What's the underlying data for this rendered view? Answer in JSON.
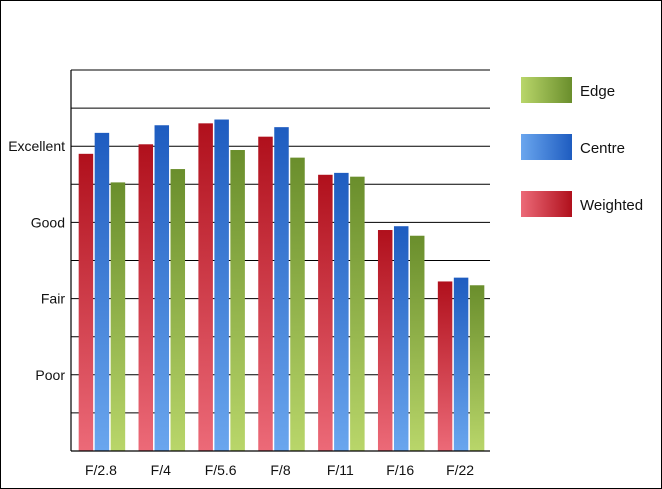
{
  "chart_data": {
    "type": "bar",
    "categories": [
      "F/2.8",
      "F/4",
      "F/5.6",
      "F/8",
      "F/11",
      "F/16",
      "F/22"
    ],
    "y_tick_labels": [
      {
        "label": "Poor",
        "value": 2
      },
      {
        "label": "Fair",
        "value": 4
      },
      {
        "label": "Good",
        "value": 6
      },
      {
        "label": "Excellent",
        "value": 8
      }
    ],
    "ylim": [
      0,
      10
    ],
    "grid": true,
    "legend_position": "right",
    "series": [
      {
        "name": "Weighted",
        "color": "#d4202c",
        "values": [
          7.8,
          8.05,
          8.6,
          8.25,
          7.25,
          5.8,
          4.45
        ]
      },
      {
        "name": "Centre",
        "color": "#2f6fd0",
        "values": [
          8.35,
          8.55,
          8.7,
          8.5,
          7.3,
          5.9,
          4.55
        ]
      },
      {
        "name": "Edge",
        "color": "#7fa83a",
        "values": [
          7.05,
          7.4,
          7.9,
          7.7,
          7.2,
          5.65,
          4.35
        ]
      }
    ],
    "legend_order": [
      "Edge",
      "Centre",
      "Weighted"
    ]
  }
}
